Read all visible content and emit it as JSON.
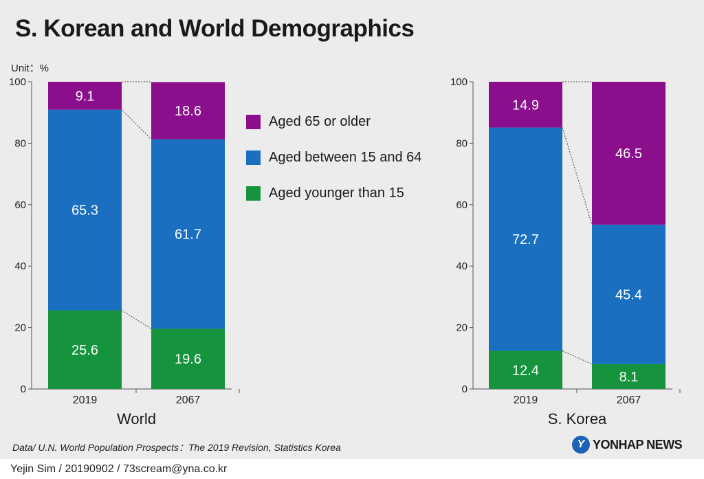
{
  "title": "S. Korean and World Demographics",
  "unit_label": "Unit：%",
  "colors": {
    "old": "#8b0e8c",
    "working": "#1a6fc1",
    "young": "#15943d"
  },
  "legend": [
    {
      "label": "Aged 65 or older",
      "color": "#8b0e8c"
    },
    {
      "label": "Aged between 15 and 64",
      "color": "#1a6fc1"
    },
    {
      "label": "Aged younger than 15",
      "color": "#15943d"
    }
  ],
  "source": "Data/ U.N. World Population Prospects：The 2019 Revision, Statistics Korea",
  "logo": {
    "mark": "Y",
    "text": "YONHAP NEWS"
  },
  "credit": "Yejin Sim / 20190902 / 73scream@yna.co.kr",
  "chart_data": [
    {
      "type": "bar",
      "stacked": true,
      "title": "World",
      "categories": [
        "2019",
        "2067"
      ],
      "ylim": [
        0,
        100
      ],
      "yticks": [
        0,
        20,
        40,
        60,
        80,
        100
      ],
      "series": [
        {
          "name": "Aged younger than 15",
          "values": [
            25.6,
            19.6
          ]
        },
        {
          "name": "Aged between 15 and 64",
          "values": [
            65.3,
            61.7
          ]
        },
        {
          "name": "Aged 65 or older",
          "values": [
            9.1,
            18.6
          ]
        }
      ]
    },
    {
      "type": "bar",
      "stacked": true,
      "title": "S. Korea",
      "categories": [
        "2019",
        "2067"
      ],
      "ylim": [
        0,
        100
      ],
      "yticks": [
        0,
        20,
        40,
        60,
        80,
        100
      ],
      "series": [
        {
          "name": "Aged younger than 15",
          "values": [
            12.4,
            8.1
          ]
        },
        {
          "name": "Aged between 15 and 64",
          "values": [
            72.7,
            45.4
          ]
        },
        {
          "name": "Aged 65 or older",
          "values": [
            14.9,
            46.5
          ]
        }
      ]
    }
  ]
}
